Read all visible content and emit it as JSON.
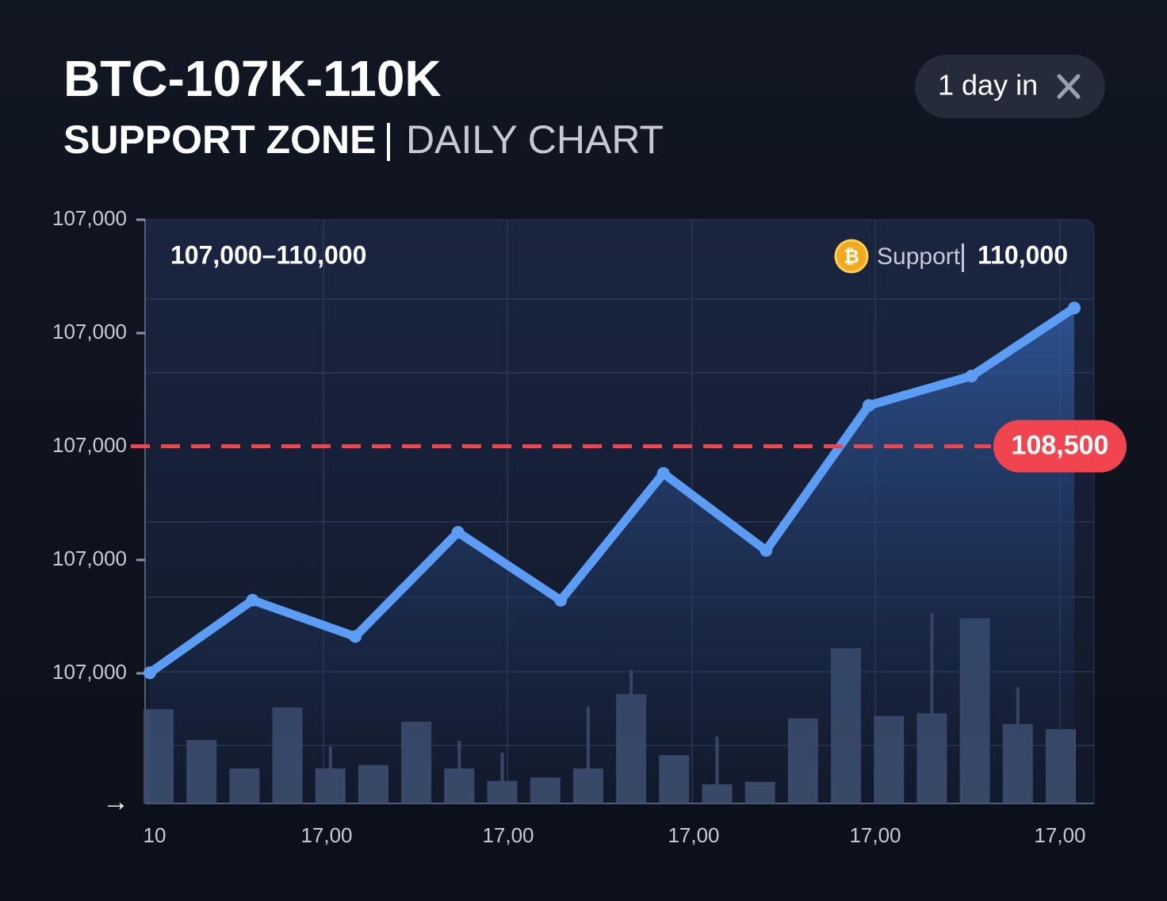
{
  "header": {
    "title": "BTC-107K-110K",
    "subtitle": "SUPPORT ZONE",
    "subtitle_secondary": "DAILY CHART",
    "button": "1 day in"
  },
  "chart_data": {
    "type": "line",
    "range_label": "107,000–110,000",
    "support_label": "Support",
    "support_value": "110,000",
    "ytick_labels": [
      "107,000",
      "107,000",
      "107,000",
      "107,000",
      "107,000"
    ],
    "xtick_labels": [
      "10",
      "17,00",
      "17,00",
      "17,00",
      "17,00",
      "17,00"
    ],
    "categories": [
      null,
      null,
      null,
      null,
      null,
      null,
      null,
      null,
      null,
      null
    ],
    "series": [
      {
        "color": "#5b9cf5",
        "values": [
          107500,
          107820,
          107660,
          108120,
          107820,
          108380,
          108040,
          108680,
          108810,
          109110
        ]
      }
    ],
    "ylim": [
      107000,
      109500
    ],
    "reference_line": {
      "value": 108500,
      "label": "108,500",
      "color": "#f0454f"
    },
    "volume": {
      "color": "#3c4d6c",
      "ylim": [
        0,
        250
      ],
      "values": [
        113,
        76,
        42,
        115,
        42,
        46,
        98,
        42,
        27,
        31,
        42,
        131,
        58,
        23,
        26,
        102,
        186,
        105,
        108,
        222,
        95,
        89
      ],
      "wicks": [
        null,
        null,
        null,
        null,
        68,
        null,
        null,
        75,
        61,
        null,
        116,
        160,
        null,
        80,
        null,
        null,
        null,
        null,
        228,
        null,
        139,
        null
      ]
    }
  }
}
